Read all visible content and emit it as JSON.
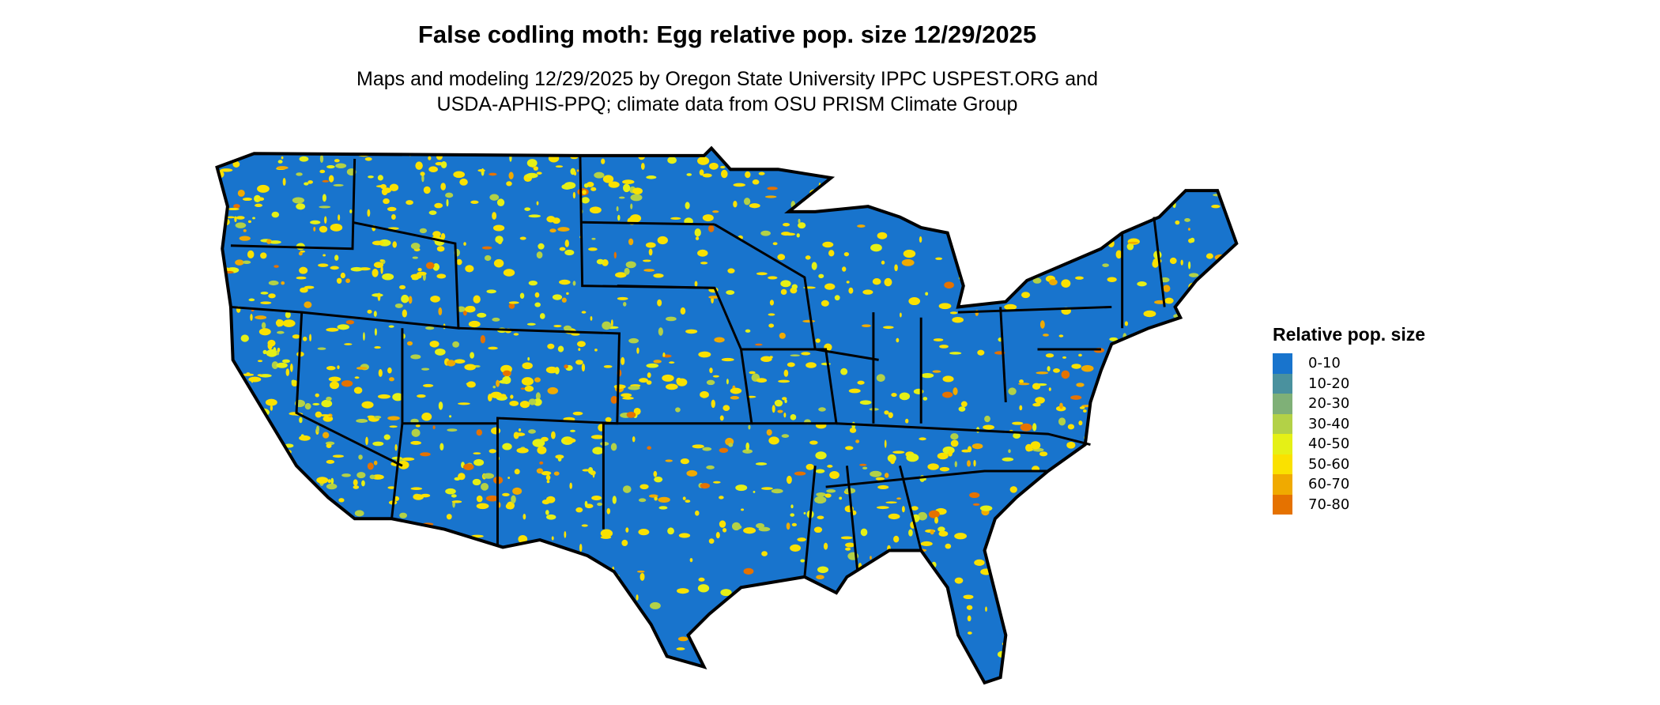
{
  "title": "False codling moth: Egg relative pop. size 12/29/2025",
  "subtitle_line1": "Maps and modeling 12/29/2025 by Oregon State University IPPC USPEST.ORG and",
  "subtitle_line2": "USDA-APHIS-PPQ; climate data from OSU PRISM Climate Group",
  "map": {
    "region": "Contiguous United States",
    "base_color": "#1874CD",
    "border_color": "#000000"
  },
  "legend": {
    "title": "Relative pop. size",
    "items": [
      {
        "label": "0-10",
        "color": "#1874CD"
      },
      {
        "label": "10-20",
        "color": "#4A919E"
      },
      {
        "label": "20-30",
        "color": "#7FB077"
      },
      {
        "label": "30-40",
        "color": "#B3D147"
      },
      {
        "label": "40-50",
        "color": "#E5F016"
      },
      {
        "label": "50-60",
        "color": "#FAE100"
      },
      {
        "label": "60-70",
        "color": "#F0AA00"
      },
      {
        "label": "70-80",
        "color": "#E57200"
      }
    ]
  }
}
